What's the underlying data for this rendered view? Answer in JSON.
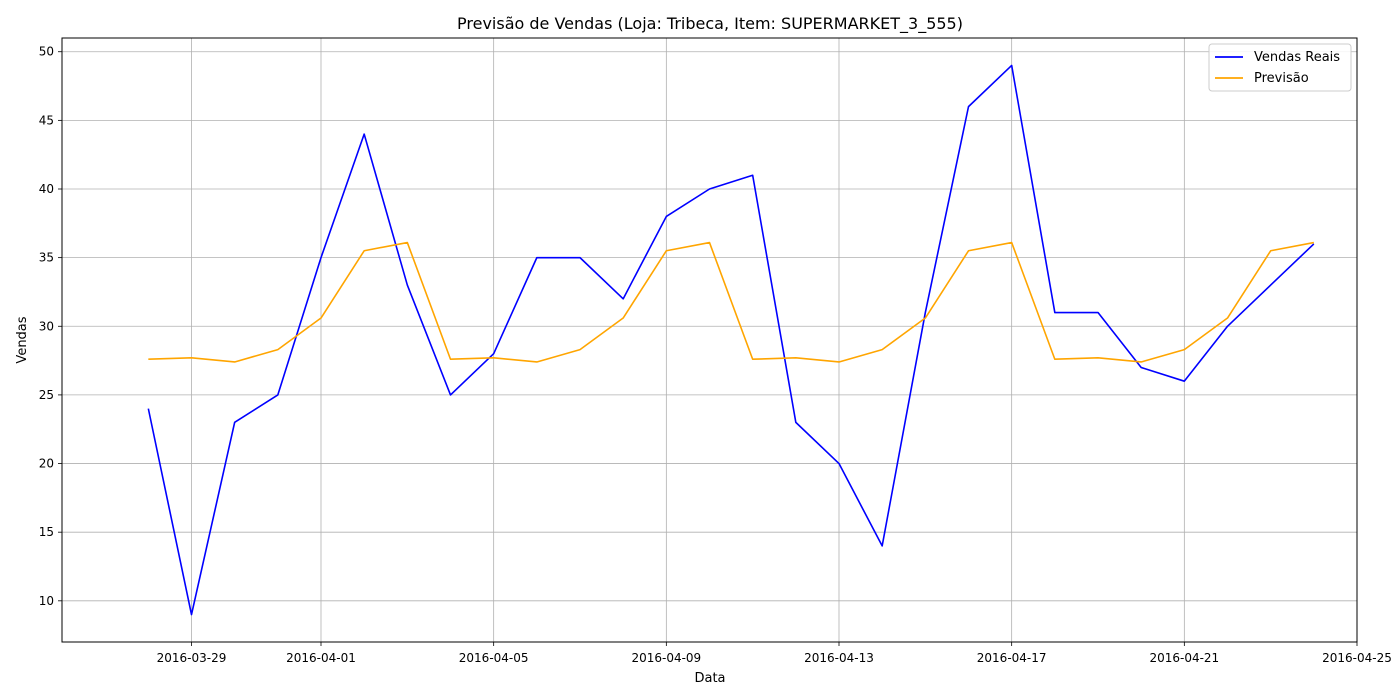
{
  "chart_data": {
    "type": "line",
    "title": "Previsão de Vendas (Loja: Tribeca, Item: SUPERMARKET_3_555)",
    "xlabel": "Data",
    "ylabel": "Vendas",
    "x": [
      "2016-03-28",
      "2016-03-29",
      "2016-03-30",
      "2016-03-31",
      "2016-04-01",
      "2016-04-02",
      "2016-04-03",
      "2016-04-04",
      "2016-04-05",
      "2016-04-06",
      "2016-04-07",
      "2016-04-08",
      "2016-04-09",
      "2016-04-10",
      "2016-04-11",
      "2016-04-12",
      "2016-04-13",
      "2016-04-14",
      "2016-04-15",
      "2016-04-16",
      "2016-04-17",
      "2016-04-18",
      "2016-04-19",
      "2016-04-20",
      "2016-04-21",
      "2016-04-22",
      "2016-04-23",
      "2016-04-24"
    ],
    "xlim": [
      "2016-03-26",
      "2016-04-25"
    ],
    "xticks": [
      "2016-03-29",
      "2016-04-01",
      "2016-04-05",
      "2016-04-09",
      "2016-04-13",
      "2016-04-17",
      "2016-04-21",
      "2016-04-25"
    ],
    "ylim": [
      7,
      51
    ],
    "yticks": [
      10,
      15,
      20,
      25,
      30,
      35,
      40,
      45,
      50
    ],
    "grid": true,
    "legend_position": "top-right",
    "series": [
      {
        "name": "Vendas Reais",
        "color": "#0000ff",
        "values": [
          24,
          9,
          23,
          25,
          35,
          44,
          33,
          25,
          28,
          35,
          35,
          32,
          38,
          40,
          41,
          23,
          20,
          14,
          31,
          46,
          49,
          31,
          31,
          27,
          26,
          30,
          33,
          36
        ]
      },
      {
        "name": "Previsão",
        "color": "#ffa500",
        "values": [
          27.6,
          27.7,
          27.4,
          28.3,
          30.6,
          35.5,
          36.1,
          27.6,
          27.7,
          27.4,
          28.3,
          30.6,
          35.5,
          36.1,
          27.6,
          27.7,
          27.4,
          28.3,
          30.6,
          35.5,
          36.1,
          27.6,
          27.7,
          27.4,
          28.3,
          30.6,
          35.5,
          36.1
        ]
      }
    ]
  }
}
